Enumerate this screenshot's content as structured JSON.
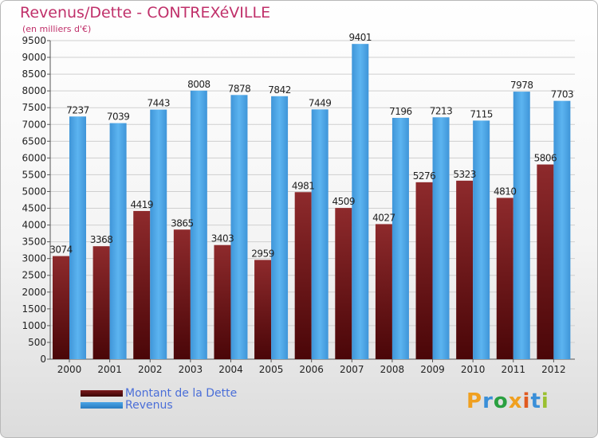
{
  "title": "Revenus/Dette - CONTREXéVILLE",
  "subtitle": "(en milliers d'€)",
  "colors": {
    "debt": "#7a1a1c",
    "revenue": "#4aa3e6",
    "grid": "#cfcfcf",
    "axis_text": "#222222",
    "title": "#c0306a",
    "legend_text": "#4a6ed8"
  },
  "chart_data": {
    "type": "bar",
    "title": "Revenus/Dette - CONTREXéVILLE",
    "subtitle": "(en milliers d'€)",
    "xlabel": "",
    "ylabel": "",
    "ylim": [
      0,
      9500
    ],
    "yticks": [
      0,
      500,
      1000,
      1500,
      2000,
      2500,
      3000,
      3500,
      4000,
      4500,
      5000,
      5500,
      6000,
      6500,
      7000,
      7500,
      8000,
      8500,
      9000,
      9500
    ],
    "grid": true,
    "legend_position": "bottom-left",
    "categories": [
      "2000",
      "2001",
      "2002",
      "2003",
      "2004",
      "2005",
      "2006",
      "2007",
      "2008",
      "2009",
      "2010",
      "2011",
      "2012"
    ],
    "series": [
      {
        "name": "Montant de la Dette",
        "values": [
          3074,
          3368,
          4419,
          3865,
          3403,
          2959,
          4981,
          4509,
          4027,
          5276,
          5323,
          4810,
          5806
        ]
      },
      {
        "name": "Revenus",
        "values": [
          7237,
          7039,
          7443,
          8008,
          7878,
          7842,
          7449,
          9401,
          7196,
          7213,
          7115,
          7978,
          7703
        ]
      }
    ]
  },
  "legend": [
    {
      "label": "Montant de la Dette",
      "color": "#7a1a1c"
    },
    {
      "label": "Revenus",
      "color": "#4aa3e6"
    }
  ],
  "logo": {
    "letters": [
      {
        "char": "P",
        "color": "#f0a020"
      },
      {
        "char": "r",
        "color": "#3a8fd8"
      },
      {
        "char": "o",
        "color": "#2aa040"
      },
      {
        "char": "x",
        "color": "#f0a020"
      },
      {
        "char": "i",
        "color": "#e05a20"
      },
      {
        "char": "t",
        "color": "#3a8fd8"
      },
      {
        "char": "i",
        "color": "#9ac030"
      }
    ]
  }
}
